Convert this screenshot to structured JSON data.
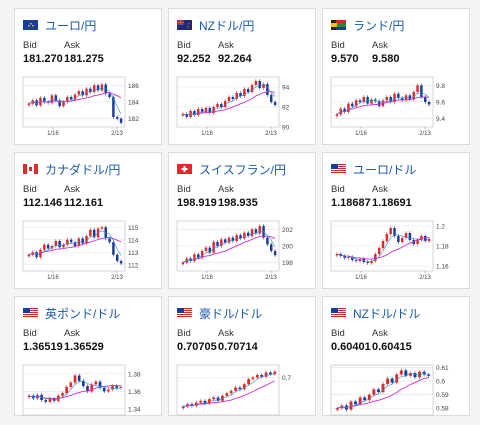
{
  "labels": {
    "bid": "Bid",
    "ask": "Ask"
  },
  "colors": {
    "up": "#e02a2a",
    "down": "#1a3a9c",
    "ma": "#d030d0",
    "ma2": "#2a8fd0",
    "title": "#1a5aa8"
  },
  "cards": [
    {
      "title": "ユーロ/円",
      "flag": "eu-flag",
      "bid": "181.270",
      "ask": "181.275",
      "xticks": [
        "1/16",
        "2/13"
      ],
      "yticks": [
        "186",
        "184",
        "182"
      ],
      "chart_data": {
        "type": "candlestick",
        "ylim": [
          181,
          187
        ],
        "close": [
          183.8,
          184.2,
          183.6,
          184.5,
          184.0,
          183.9,
          184.8,
          184.2,
          183.5,
          184.0,
          184.6,
          184.3,
          184.9,
          185.3,
          184.8,
          185.6,
          185.2,
          186.0,
          185.4,
          186.1,
          185.0,
          184.6,
          182.2,
          182.0,
          181.5
        ]
      }
    },
    {
      "title": "NZドル/円",
      "flag": "nz-flag",
      "bid": "92.252",
      "ask": "92.264",
      "xticks": [
        "1/16",
        "2/13"
      ],
      "yticks": [
        "94",
        "92",
        "90"
      ],
      "chart_data": {
        "type": "candlestick",
        "ylim": [
          90,
          95
        ],
        "close": [
          91.3,
          91.0,
          91.6,
          91.2,
          91.8,
          91.5,
          91.9,
          91.4,
          92.0,
          92.3,
          92.0,
          92.6,
          93.0,
          92.8,
          93.4,
          93.1,
          93.8,
          93.5,
          94.2,
          94.6,
          93.9,
          94.3,
          93.2,
          92.5,
          92.2
        ]
      }
    },
    {
      "title": "ランド/円",
      "flag": "za-flag",
      "bid": "9.570",
      "ask": "9.580",
      "xticks": [
        "1/16",
        "2/13"
      ],
      "yticks": [
        "9.8",
        "9.6",
        "9.4"
      ],
      "chart_data": {
        "type": "candlestick",
        "ylim": [
          9.3,
          9.9
        ],
        "close": [
          9.45,
          9.52,
          9.48,
          9.58,
          9.55,
          9.62,
          9.6,
          9.66,
          9.58,
          9.63,
          9.61,
          9.55,
          9.62,
          9.66,
          9.6,
          9.7,
          9.65,
          9.62,
          9.68,
          9.63,
          9.72,
          9.8,
          9.66,
          9.6,
          9.57
        ]
      }
    },
    {
      "title": "カナダドル/円",
      "flag": "ca-flag",
      "bid": "112.146",
      "ask": "112.161",
      "xticks": [
        "1/16",
        "2/13"
      ],
      "yticks": [
        "115",
        "114",
        "113",
        "112"
      ],
      "chart_data": {
        "type": "candlestick",
        "ylim": [
          111.5,
          115.5
        ],
        "close": [
          112.8,
          113.0,
          112.6,
          113.2,
          113.6,
          113.3,
          113.5,
          113.9,
          113.4,
          113.6,
          114.0,
          113.8,
          113.5,
          114.1,
          113.7,
          114.3,
          114.8,
          114.2,
          114.9,
          115.0,
          114.1,
          113.8,
          112.8,
          112.3,
          112.1
        ]
      }
    },
    {
      "title": "スイスフラン/円",
      "flag": "ch-flag",
      "bid": "198.919",
      "ask": "198.935",
      "xticks": [
        "1/16",
        "2/13"
      ],
      "yticks": [
        "202",
        "200",
        "198"
      ],
      "chart_data": {
        "type": "candlestick",
        "ylim": [
          197,
          203
        ],
        "close": [
          198.0,
          198.5,
          198.2,
          199.0,
          198.6,
          199.4,
          199.8,
          199.2,
          200.5,
          200.0,
          200.8,
          200.4,
          201.0,
          200.6,
          201.3,
          200.9,
          201.6,
          201.2,
          202.0,
          201.5,
          202.4,
          201.0,
          200.2,
          199.4,
          198.9
        ]
      }
    },
    {
      "title": "ユーロ/ドル",
      "flag": "us-flag",
      "bid": "1.18687",
      "ask": "1.18691",
      "xticks": [
        "1/16",
        "2/13"
      ],
      "yticks": [
        "1.2",
        "1.18",
        "1.16"
      ],
      "chart_data": {
        "type": "candlestick",
        "ylim": [
          1.155,
          1.205
        ],
        "close": [
          1.172,
          1.17,
          1.168,
          1.169,
          1.166,
          1.165,
          1.167,
          1.164,
          1.163,
          1.165,
          1.172,
          1.178,
          1.185,
          1.192,
          1.198,
          1.19,
          1.184,
          1.188,
          1.193,
          1.186,
          1.182,
          1.186,
          1.19,
          1.185,
          1.187
        ]
      }
    },
    {
      "title": "英ポンド/ドル",
      "flag": "us-flag",
      "bid": "1.36519",
      "ask": "1.36529",
      "xticks": [],
      "yticks": [
        "1.38",
        "1.36",
        "1.34"
      ],
      "chart_data": {
        "type": "candlestick",
        "ylim": [
          1.333,
          1.39
        ],
        "close": [
          1.355,
          1.352,
          1.356,
          1.35,
          1.348,
          1.352,
          1.349,
          1.355,
          1.358,
          1.365,
          1.37,
          1.378,
          1.372,
          1.366,
          1.36,
          1.368,
          1.371,
          1.364,
          1.36,
          1.362,
          1.366,
          1.364,
          1.365
        ]
      }
    },
    {
      "title": "豪ドル/ドル",
      "flag": "us-flag",
      "bid": "0.70705",
      "ask": "0.70714",
      "xticks": [],
      "yticks": [
        "0.7"
      ],
      "chart_data": {
        "type": "candlestick",
        "ylim": [
          0.655,
          0.715
        ],
        "close": [
          0.665,
          0.668,
          0.666,
          0.67,
          0.672,
          0.669,
          0.674,
          0.676,
          0.672,
          0.678,
          0.681,
          0.684,
          0.688,
          0.686,
          0.692,
          0.698,
          0.7,
          0.703,
          0.701,
          0.706,
          0.704,
          0.707
        ]
      }
    },
    {
      "title": "NZドル/ドル",
      "flag": "us-flag",
      "bid": "0.60401",
      "ask": "0.60415",
      "xticks": [],
      "yticks": [
        "0.61",
        "0.6",
        "0.59",
        "0.58"
      ],
      "chart_data": {
        "type": "candlestick",
        "ylim": [
          0.575,
          0.612
        ],
        "close": [
          0.58,
          0.582,
          0.579,
          0.585,
          0.583,
          0.588,
          0.586,
          0.59,
          0.594,
          0.592,
          0.598,
          0.602,
          0.599,
          0.605,
          0.608,
          0.604,
          0.606,
          0.603,
          0.607,
          0.605,
          0.604
        ]
      }
    }
  ]
}
